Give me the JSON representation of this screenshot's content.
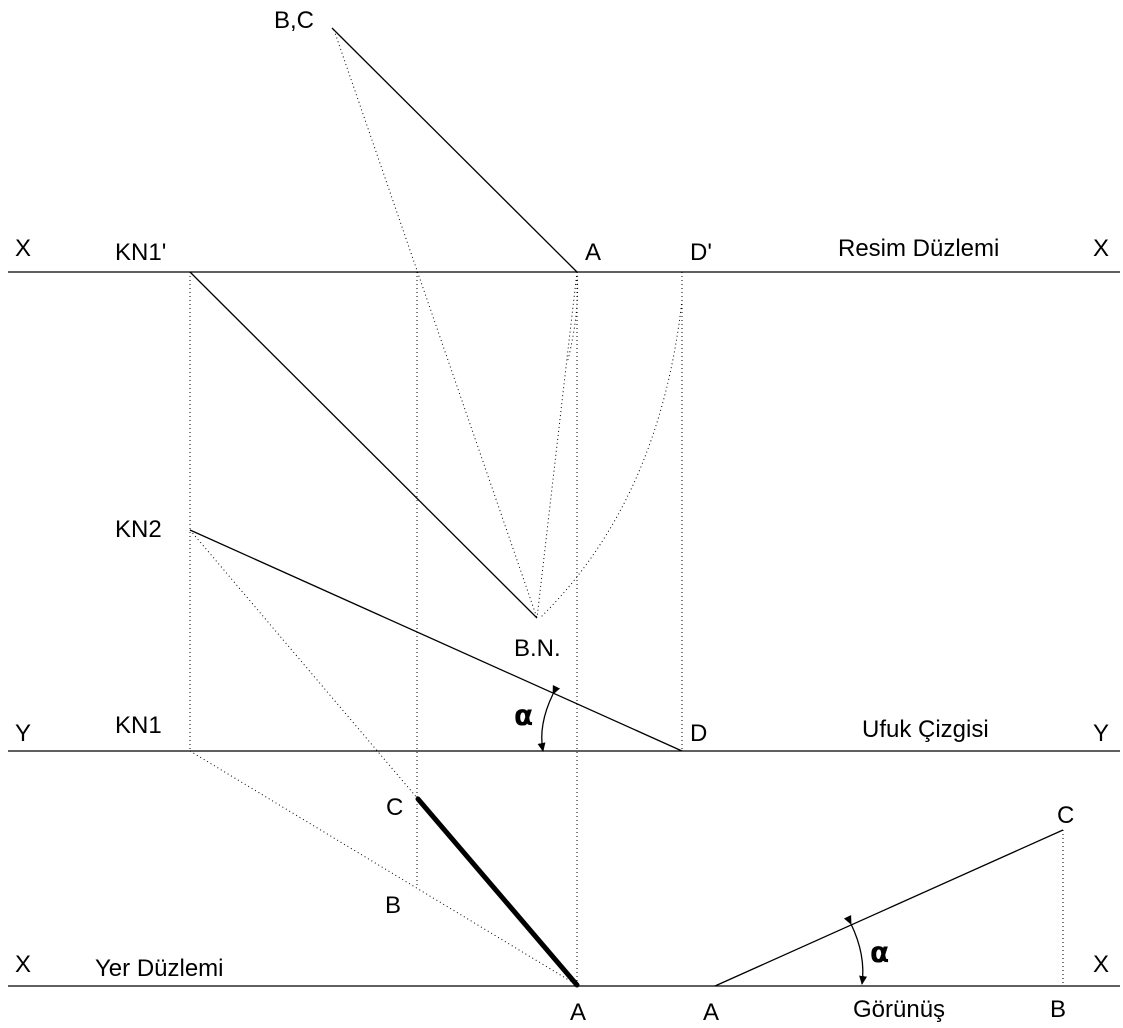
{
  "labels": {
    "bc_top": "B,C",
    "x_top_left": "X",
    "x_top_right": "X",
    "kn1_prime": "KN1'",
    "a_top": "A",
    "d_prime": "D'",
    "picture_plane": "Resim Düzlemi",
    "kn2": "KN2",
    "bn": "B.N.",
    "y_left": "Y",
    "y_right": "Y",
    "kn1": "KN1",
    "alpha_mid": "α",
    "d": "D",
    "horizon_line": "Ufuk Çizgisi",
    "c_mid": "C",
    "b_mid": "B",
    "x_bottom_left": "X",
    "x_bottom_right": "X",
    "ground_plane": "Yer Düzlemi",
    "a_bottom": "A",
    "a_view": "A",
    "view": "Görünüş",
    "b_view": "B",
    "c_view": "C",
    "alpha_view": "α"
  }
}
